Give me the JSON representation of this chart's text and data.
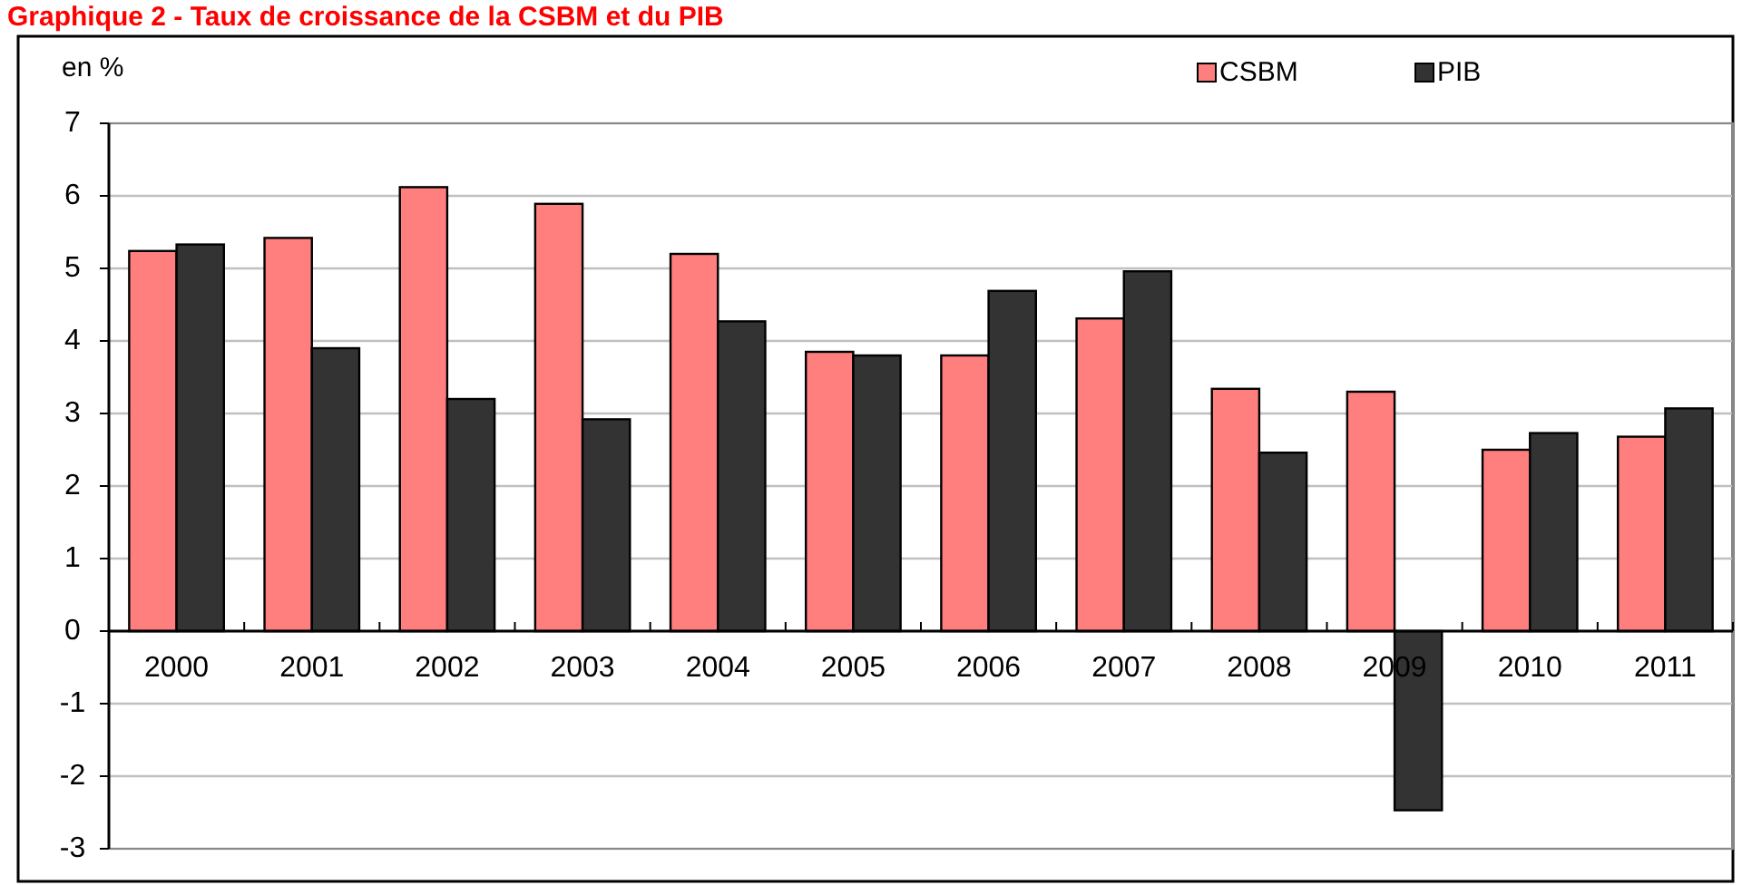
{
  "chart_data": {
    "type": "bar",
    "title": "Graphique 2 - Taux de croissance de la CSBM et du PIB",
    "ylabel": "en %",
    "categories": [
      "2000",
      "2001",
      "2002",
      "2003",
      "2004",
      "2005",
      "2006",
      "2007",
      "2008",
      "2009",
      "2010",
      "2011"
    ],
    "series": [
      {
        "name": "CSBM",
        "color": "#ff7f7f",
        "values": [
          5.24,
          5.42,
          6.12,
          5.89,
          5.2,
          3.85,
          3.8,
          4.31,
          3.34,
          3.3,
          2.5,
          2.68
        ]
      },
      {
        "name": "PIB",
        "color": "#333333",
        "values": [
          5.33,
          3.9,
          3.2,
          2.92,
          4.27,
          3.8,
          4.69,
          4.96,
          2.46,
          -2.47,
          2.73,
          3.07
        ]
      }
    ],
    "ylim": [
      -3,
      7
    ],
    "yticks": [
      -3,
      -2,
      -1,
      0,
      1,
      2,
      3,
      4,
      5,
      6,
      7
    ],
    "grid": "y",
    "legend": "top right"
  }
}
